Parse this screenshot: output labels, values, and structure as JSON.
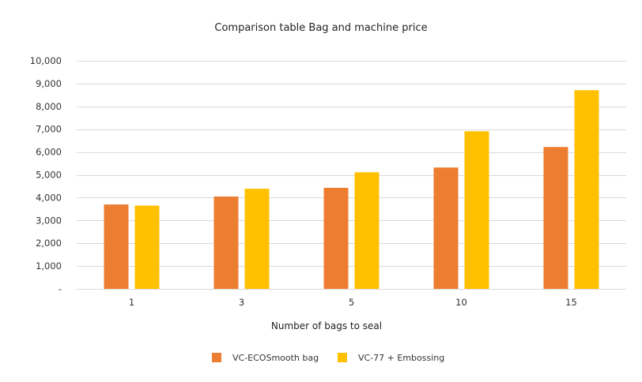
{
  "chart_data": {
    "type": "bar",
    "title": "Comparison table Bag and machine price",
    "xlabel": "Number of bags to seal",
    "ylabel": "",
    "categories": [
      "1",
      "3",
      "5",
      "10",
      "15"
    ],
    "series": [
      {
        "name": "VC-ECOSmooth bag",
        "values": [
          3700,
          4050,
          4430,
          5320,
          6220
        ],
        "color": "#ED7D31"
      },
      {
        "name": "VC-77 + Embossing",
        "values": [
          3650,
          4390,
          5110,
          6910,
          8710
        ],
        "color": "#FFC000"
      }
    ],
    "ylim": [
      0,
      10000
    ],
    "yticks": [
      0,
      1000,
      2000,
      3000,
      4000,
      5000,
      6000,
      7000,
      8000,
      9000,
      10000
    ],
    "ytick_labels": [
      "-",
      "1,000",
      "2,000",
      "3,000",
      "4,000",
      "5,000",
      "6,000",
      "7,000",
      "8,000",
      "9,000",
      "10,000"
    ],
    "grid": true,
    "legend_position": "bottom"
  }
}
